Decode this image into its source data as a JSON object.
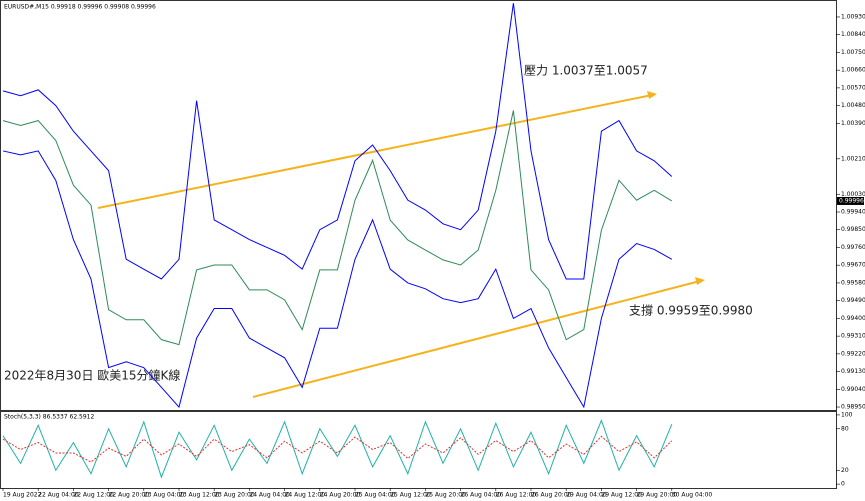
{
  "chart_data": [
    {
      "type": "line",
      "title": "EURUSD#,M15 0.99918 0.99996 0.99908 0.99996",
      "annotations": [
        "壓力 1.0037至1.0057",
        "支撐 0.9959至0.9980",
        "2022年8月30日 歐美15分鐘K線"
      ],
      "current_price": 0.99996,
      "categories": [
        "19 Aug 2022",
        null,
        "22 Aug 04:00",
        null,
        "22 Aug 12:00",
        null,
        "22 Aug 20:00",
        null,
        "23 Aug 04:00",
        null,
        "23 Aug 12:00",
        null,
        "23 Aug 20:00",
        null,
        "24 Aug 04:00",
        null,
        "24 Aug 12:00",
        null,
        "24 Aug 20:00",
        null,
        "25 Aug 04:00",
        null,
        "25 Aug 12:00",
        null,
        "25 Aug 20:00",
        null,
        "26 Aug 04:00",
        null,
        "26 Aug 12:00",
        null,
        "26 Aug 20:00",
        null,
        "29 Aug 04:00",
        null,
        "29 Aug 12:00",
        null,
        "29 Aug 20:00",
        null,
        "30 Aug 04:00"
      ],
      "series": [
        {
          "color": "#2e8b57",
          "values": [
            1.00404,
            1.00379,
            1.00404,
            1.00303,
            1.00076,
            0.99975,
            0.99444,
            0.99393,
            0.99393,
            0.99292,
            0.99267,
            0.99646,
            0.99671,
            0.99671,
            0.99545,
            0.99545,
            0.99494,
            0.99343,
            0.99646,
            0.99646,
            1.0,
            1.00202,
            0.99899,
            0.99798,
            0.99747,
            0.99697,
            0.99671,
            0.99747,
            1.0005,
            1.00455,
            0.99646,
            0.99545,
            0.99292,
            0.99343,
            0.99848,
            1.00101,
            1.0,
            1.0005,
            0.99996
          ]
        },
        {
          "color": "#0000ff",
          "values": [
            1.00555,
            1.0053,
            1.0056,
            1.0048,
            1.0035,
            1.0025,
            1.0015,
            0.997,
            0.9965,
            0.996,
            0.997,
            1.00505,
            0.999,
            0.9985,
            0.998,
            0.9976,
            0.9972,
            0.9965,
            0.9985,
            0.999,
            1.002,
            1.0028,
            1.0015,
            1.0,
            0.9995,
            0.9988,
            0.9985,
            0.9995,
            1.0035,
            1.01,
            1.0025,
            0.998,
            0.996,
            0.996,
            1.0035,
            1.00404,
            1.0025,
            1.002,
            1.0012
          ]
        },
        {
          "color": "#0000ff",
          "values": [
            1.0025,
            1.0023,
            1.0025,
            1.001,
            0.998,
            0.996,
            0.9915,
            0.9918,
            0.9915,
            0.9905,
            0.9895,
            0.993,
            0.9945,
            0.9945,
            0.993,
            0.9925,
            0.992,
            0.9905,
            0.9935,
            0.9935,
            0.997,
            0.999,
            0.9965,
            0.9958,
            0.9955,
            0.995,
            0.9948,
            0.995,
            0.9965,
            0.994,
            0.9945,
            0.9925,
            0.991,
            0.9895,
            0.994,
            0.997,
            0.9978,
            0.9975,
            0.997
          ]
        }
      ],
      "ylim": [
        0.98935,
        1.01011
      ],
      "yticks": [
        {
          "value": 1.0093,
          "label": "1.00930"
        },
        {
          "value": 1.0084,
          "label": "1.00840"
        },
        {
          "value": 1.0075,
          "label": "1.00750"
        },
        {
          "value": 1.0066,
          "label": "1.00660"
        },
        {
          "value": 1.0057,
          "label": "1.00570"
        },
        {
          "value": 1.0048,
          "label": "1.00480"
        },
        {
          "value": 1.0039,
          "label": "1.00390"
        },
        {
          "value": 1.0021,
          "label": "1.00210"
        },
        {
          "value": 1.0003,
          "label": "1.00030"
        },
        {
          "value": 0.9994,
          "label": "0.99940"
        },
        {
          "value": 0.9985,
          "label": "0.99850"
        },
        {
          "value": 0.9976,
          "label": "0.99760"
        },
        {
          "value": 0.9967,
          "label": "0.99670"
        },
        {
          "value": 0.9958,
          "label": "0.99580"
        },
        {
          "value": 0.9949,
          "label": "0.99490"
        },
        {
          "value": 0.994,
          "label": "0.99400"
        },
        {
          "value": 0.9931,
          "label": "0.99310"
        },
        {
          "value": 0.9922,
          "label": "0.99220"
        },
        {
          "value": 0.9913,
          "label": "0.99130"
        },
        {
          "value": 0.9904,
          "label": "0.99040"
        },
        {
          "value": 0.9895,
          "label": "0.98950"
        }
      ]
    },
    {
      "type": "line",
      "title": "Stoch(5,3,3) 86.5337 62.5912",
      "series": [
        {
          "color": "#20b2aa",
          "values": [
            70,
            30,
            85,
            20,
            60,
            15,
            80,
            25,
            90,
            10,
            75,
            35,
            85,
            20,
            65,
            30,
            90,
            15,
            80,
            40,
            85,
            25,
            70,
            15,
            90,
            30,
            80,
            20,
            88,
            25,
            75,
            15,
            85,
            30,
            92,
            20,
            70,
            25,
            86.5337
          ]
        },
        {
          "color": "#e03030",
          "dash": true,
          "values": [
            65,
            50,
            60,
            45,
            45,
            32,
            52,
            40,
            65,
            42,
            58,
            40,
            65,
            47,
            57,
            38,
            62,
            45,
            62,
            45,
            68,
            50,
            60,
            37,
            58,
            45,
            67,
            43,
            63,
            47,
            63,
            38,
            58,
            43,
            69,
            47,
            61,
            38,
            62.5912
          ]
        }
      ],
      "ylim": [
        -5.6,
        104.2
      ],
      "yticks": [
        100,
        80,
        20,
        0
      ]
    }
  ]
}
